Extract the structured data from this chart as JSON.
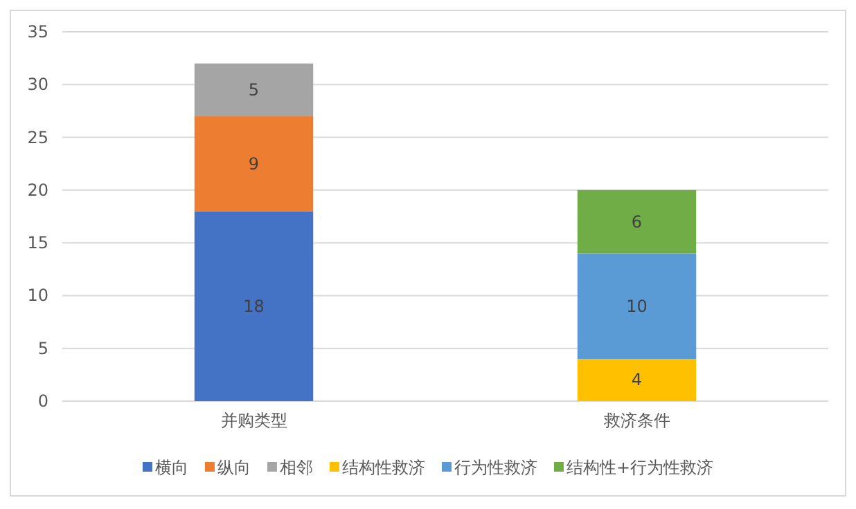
{
  "chart_data": {
    "type": "bar",
    "stacked": true,
    "categories": [
      "并购类型",
      "救济条件"
    ],
    "series": [
      {
        "name": "横向",
        "color": "#4472c4",
        "values": [
          18,
          null
        ]
      },
      {
        "name": "纵向",
        "color": "#ed7d31",
        "values": [
          9,
          null
        ]
      },
      {
        "name": "相邻",
        "color": "#a5a5a5",
        "values": [
          5,
          null
        ]
      },
      {
        "name": "结构性救济",
        "color": "#ffc000",
        "values": [
          null,
          4
        ]
      },
      {
        "name": "行为性救济",
        "color": "#5b9bd5",
        "values": [
          null,
          10
        ]
      },
      {
        "name": "结构性+行为性救济",
        "color": "#70ad47",
        "values": [
          null,
          6
        ]
      }
    ],
    "ylim": [
      0,
      35
    ],
    "yticks": [
      0,
      5,
      10,
      15,
      20,
      25,
      30,
      35
    ],
    "grid": "y",
    "legend": "bottom",
    "data_labels": true
  }
}
